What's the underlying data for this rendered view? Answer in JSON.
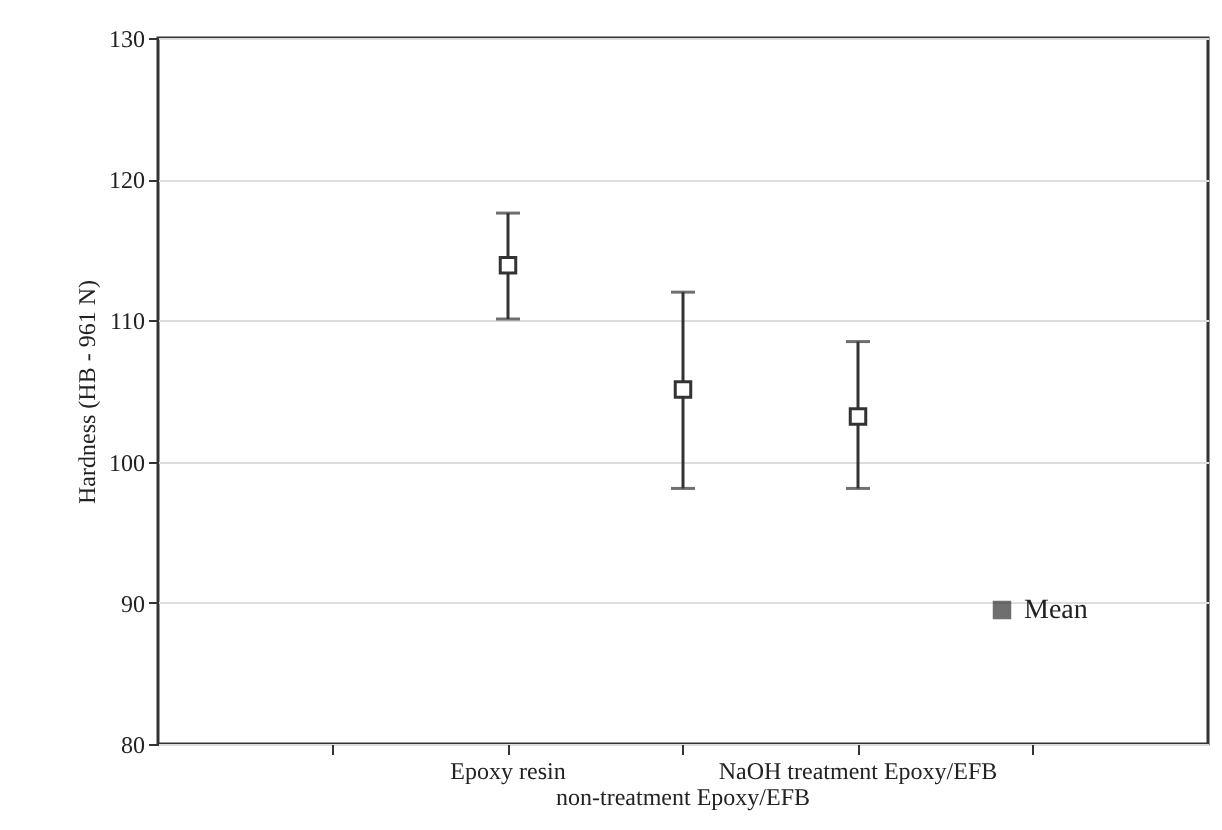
{
  "chart_data": {
    "type": "scatter",
    "ylabel": "Hardness (HB - 961 N)",
    "categories": [
      null,
      "Epoxy resin",
      "non-treatment Epoxy/EFB",
      "NaOH treatment Epoxy/EFB",
      null
    ],
    "series": [
      {
        "name": "Mean",
        "color": "#333333",
        "values": [
          null,
          113.9,
          105.1,
          103.2,
          null
        ],
        "errors": [
          null,
          [
            110.1,
            117.6
          ],
          [
            98.1,
            112
          ],
          [
            98.1,
            108.5
          ],
          null
        ]
      }
    ],
    "ylim": [
      80,
      130
    ],
    "yticks": [
      80,
      90,
      100,
      110,
      120,
      130
    ],
    "grid": "y",
    "legend": "bottom right",
    "marker": "square"
  }
}
